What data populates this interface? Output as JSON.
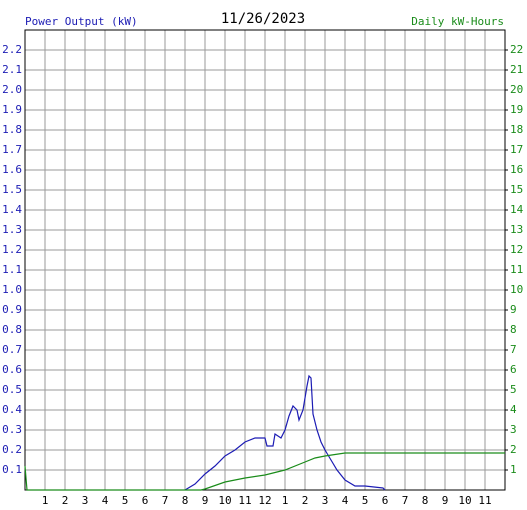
{
  "chart_data": {
    "type": "line",
    "title": "11/26/2023",
    "xlim": [
      0,
      24
    ],
    "ylim": [
      0,
      2.3
    ],
    "y2lim": [
      0,
      23
    ],
    "grid": true,
    "xticks": [
      1,
      2,
      3,
      4,
      5,
      6,
      7,
      8,
      9,
      10,
      11,
      12,
      {
        "value": 13,
        "label": "1"
      },
      {
        "value": 14,
        "label": "2"
      },
      {
        "value": 15,
        "label": "3"
      },
      {
        "value": 16,
        "label": "4"
      },
      {
        "value": 17,
        "label": "5"
      },
      {
        "value": 18,
        "label": "6"
      },
      {
        "value": 19,
        "label": "7"
      },
      {
        "value": 20,
        "label": "8"
      },
      {
        "value": 21,
        "label": "9"
      },
      {
        "value": 22,
        "label": "10"
      },
      {
        "value": 23,
        "label": "11"
      }
    ],
    "yticks": [
      0.1,
      0.2,
      0.3,
      0.4,
      0.5,
      0.6,
      0.7,
      0.8,
      0.9,
      {
        "value": 1,
        "label": "1.0"
      },
      1.1,
      1.2,
      1.3,
      1.4,
      1.5,
      1.6,
      1.7,
      1.8,
      1.9,
      {
        "value": 2,
        "label": "2.0"
      },
      2.1,
      2.2
    ],
    "y2ticks": [
      1,
      2,
      3,
      4,
      5,
      6,
      7,
      8,
      9,
      10,
      11,
      12,
      13,
      14,
      15,
      16,
      17,
      18,
      19,
      20,
      21,
      22
    ],
    "series": [
      {
        "name": "Power Output (kW)",
        "color": "#1c1cb4",
        "x": [
          8.0,
          8.5,
          9,
          9.5,
          10,
          10.5,
          11,
          11.5,
          12,
          12.1,
          12.4,
          12.5,
          12.8,
          13,
          13.2,
          13.4,
          13.6,
          13.7,
          13.9,
          14.1,
          14.2,
          14.3,
          14.4,
          14.6,
          14.8,
          15,
          15.3,
          15.6,
          16,
          16.5,
          17,
          17.9,
          18
        ],
        "values": [
          0,
          0.03,
          0.08,
          0.12,
          0.17,
          0.2,
          0.24,
          0.26,
          0.26,
          0.22,
          0.22,
          0.28,
          0.26,
          0.3,
          0.37,
          0.42,
          0.4,
          0.35,
          0.4,
          0.52,
          0.57,
          0.56,
          0.38,
          0.3,
          0.24,
          0.2,
          0.15,
          0.1,
          0.05,
          0.02,
          0.02,
          0.01,
          0
        ]
      },
      {
        "name": "Daily kW-Hours",
        "color": "#1a8c1a",
        "axis": "y2",
        "x": [
          0,
          0.1,
          8.8,
          9,
          10,
          11,
          12,
          13,
          14,
          14.5,
          15,
          16,
          24
        ],
        "values": [
          1.2,
          0,
          0,
          0.05,
          0.4,
          0.6,
          0.75,
          1.0,
          1.4,
          1.6,
          1.7,
          1.85,
          1.85
        ]
      }
    ]
  }
}
